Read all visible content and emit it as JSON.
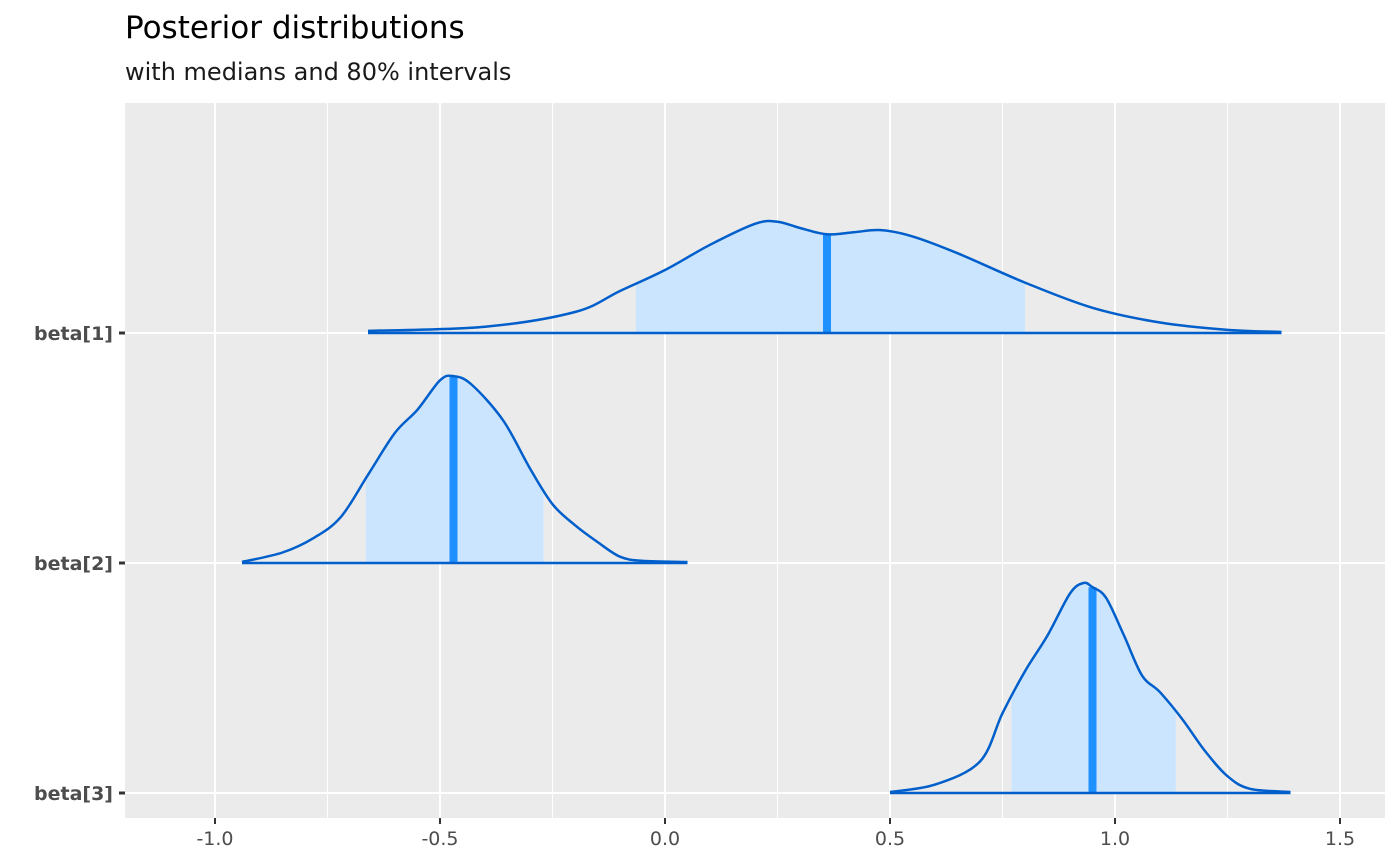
{
  "title": "Posterior distributions",
  "subtitle": "with medians and 80% intervals",
  "colors": {
    "panel_bg": "#ebebeb",
    "grid": "#ffffff",
    "density_line": "#005fcb",
    "interval_fill": "#cce5ff",
    "median_line": "#1e90ff",
    "tick_text": "#4d4d4d"
  },
  "chart_data": {
    "type": "area",
    "title": "Posterior distributions",
    "subtitle": "with medians and 80% intervals",
    "xlim": [
      -1.2,
      1.6
    ],
    "x_ticks": [
      -1.0,
      -0.5,
      0.0,
      0.5,
      1.0,
      1.5
    ],
    "x_tick_labels": [
      "-1.0",
      "-0.5",
      "0.0",
      "0.5",
      "1.0",
      "1.5"
    ],
    "grid": true,
    "series": [
      {
        "name": "beta[1]",
        "median": 0.36,
        "interval80": [
          -0.065,
          0.8
        ],
        "x": [
          -0.66,
          -0.4,
          -0.2,
          -0.1,
          0.0,
          0.1,
          0.2,
          0.25,
          0.3,
          0.36,
          0.42,
          0.48,
          0.55,
          0.65,
          0.8,
          0.95,
          1.1,
          1.25,
          1.37
        ],
        "density": [
          0.01,
          0.03,
          0.1,
          0.2,
          0.3,
          0.42,
          0.52,
          0.53,
          0.5,
          0.47,
          0.48,
          0.49,
          0.46,
          0.38,
          0.24,
          0.12,
          0.05,
          0.015,
          0.005
        ]
      },
      {
        "name": "beta[2]",
        "median": -0.47,
        "interval80": [
          -0.665,
          -0.27
        ],
        "x": [
          -0.94,
          -0.85,
          -0.78,
          -0.72,
          -0.66,
          -0.6,
          -0.55,
          -0.5,
          -0.47,
          -0.43,
          -0.36,
          -0.3,
          -0.25,
          -0.2,
          -0.15,
          -0.1,
          -0.05,
          0.05
        ],
        "density": [
          0.005,
          0.05,
          0.12,
          0.22,
          0.42,
          0.62,
          0.73,
          0.87,
          0.89,
          0.85,
          0.68,
          0.45,
          0.28,
          0.18,
          0.1,
          0.03,
          0.01,
          0.005
        ]
      },
      {
        "name": "beta[3]",
        "median": 0.95,
        "interval80": [
          0.77,
          1.135
        ],
        "x": [
          0.5,
          0.6,
          0.7,
          0.75,
          0.8,
          0.85,
          0.9,
          0.93,
          0.95,
          0.98,
          1.02,
          1.06,
          1.1,
          1.15,
          1.2,
          1.25,
          1.3,
          1.39
        ],
        "density": [
          0.005,
          0.04,
          0.15,
          0.38,
          0.58,
          0.75,
          0.95,
          1.0,
          0.98,
          0.93,
          0.75,
          0.56,
          0.48,
          0.35,
          0.2,
          0.08,
          0.02,
          0.005
        ]
      }
    ]
  }
}
